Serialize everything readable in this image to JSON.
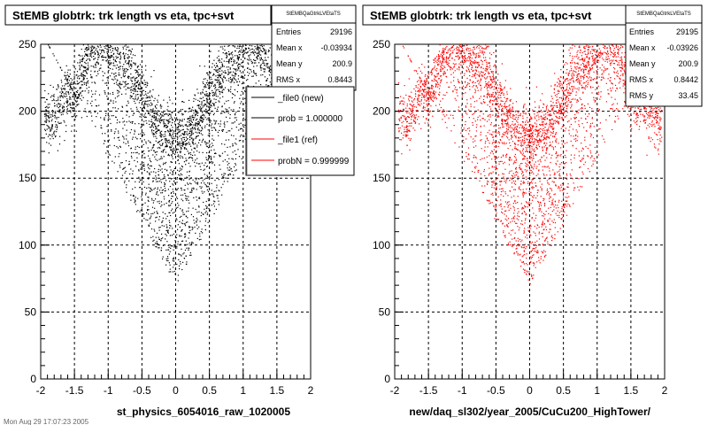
{
  "chart_data": [
    {
      "type": "scatter",
      "title": "StEMB globtrk: trk length vs eta, tpc+svt",
      "xlabel": "st_physics_6054016_raw_1020005",
      "ylabel": "",
      "xlim": [
        -2,
        2
      ],
      "ylim": [
        0,
        250
      ],
      "x_ticks": [
        "-2",
        "-1.5",
        "-1",
        "-0.5",
        "0",
        "0.5",
        "1",
        "1.5",
        "2"
      ],
      "y_ticks": [
        "0",
        "50",
        "100",
        "150",
        "200",
        "250"
      ],
      "grid": true,
      "marker_color": "#000000",
      "stats": {
        "name": "StEMBQaGtrkLVEtaTS",
        "rows": [
          {
            "label": "Entries",
            "value": "29196"
          },
          {
            "label": "Mean x",
            "value": "-0.03934"
          },
          {
            "label": "Mean y",
            "value": "200.9"
          },
          {
            "label": "RMS x",
            "value": "0.8443"
          }
        ]
      },
      "legend": {
        "placement": "right",
        "entries": [
          {
            "label": "_file0 (new)",
            "color": "#000000"
          },
          {
            "label": "prob = 1.000000",
            "color": "#000000"
          },
          {
            "label": "_file1 (ref)",
            "color": "#ff0000"
          },
          {
            "label": "probN = 0.999999",
            "color": "#ff0000"
          }
        ]
      },
      "distribution": {
        "entries": 29196,
        "rms_x": 0.8443,
        "mean_y": 200.9,
        "band": [
          [
            -1.8,
            190
          ],
          [
            -1.6,
            210
          ],
          [
            -1.5,
            205
          ],
          [
            -1.3,
            240
          ],
          [
            -1.1,
            250
          ],
          [
            -0.9,
            235
          ],
          [
            -0.7,
            230
          ],
          [
            -0.5,
            210
          ],
          [
            -0.3,
            190
          ],
          [
            -0.15,
            180
          ],
          [
            0.0,
            178
          ],
          [
            0.15,
            180
          ],
          [
            0.3,
            190
          ],
          [
            0.5,
            210
          ],
          [
            0.7,
            230
          ],
          [
            0.9,
            235
          ],
          [
            1.1,
            250
          ],
          [
            1.3,
            240
          ],
          [
            1.5,
            205
          ],
          [
            1.7,
            200
          ],
          [
            1.9,
            190
          ]
        ],
        "v_min_y": 70
      }
    },
    {
      "type": "scatter",
      "title": "StEMB globtrk: trk length vs eta, tpc+svt",
      "xlabel": "new/daq_sl302/year_2005/CuCu200_HighTower/",
      "ylabel": "",
      "xlim": [
        -2,
        2
      ],
      "ylim": [
        0,
        250
      ],
      "x_ticks": [
        "-2",
        "-1.5",
        "-1",
        "-0.5",
        "0",
        "0.5",
        "1",
        "1.5",
        "2"
      ],
      "y_ticks": [
        "0",
        "50",
        "100",
        "150",
        "200",
        "250"
      ],
      "grid": true,
      "marker_color": "#ff0000",
      "stats": {
        "name": "StEMBQaGtrkLVEtaTS",
        "rows": [
          {
            "label": "Entries",
            "value": "29195"
          },
          {
            "label": "Mean x",
            "value": "-0.03926"
          },
          {
            "label": "Mean y",
            "value": "200.9"
          },
          {
            "label": "RMS x",
            "value": "0.8442"
          },
          {
            "label": "RMS y",
            "value": "33.45"
          }
        ]
      },
      "distribution": {
        "entries": 29195,
        "rms_x": 0.8442,
        "mean_y": 200.9,
        "band": [
          [
            -1.8,
            190
          ],
          [
            -1.6,
            210
          ],
          [
            -1.5,
            205
          ],
          [
            -1.3,
            240
          ],
          [
            -1.1,
            250
          ],
          [
            -0.9,
            235
          ],
          [
            -0.7,
            230
          ],
          [
            -0.5,
            210
          ],
          [
            -0.3,
            190
          ],
          [
            -0.15,
            180
          ],
          [
            0.0,
            178
          ],
          [
            0.15,
            180
          ],
          [
            0.3,
            190
          ],
          [
            0.5,
            210
          ],
          [
            0.7,
            230
          ],
          [
            0.9,
            235
          ],
          [
            1.1,
            250
          ],
          [
            1.3,
            240
          ],
          [
            1.5,
            205
          ],
          [
            1.7,
            200
          ],
          [
            1.9,
            190
          ]
        ],
        "v_min_y": 70
      }
    }
  ],
  "footer": "Mon Aug 29 17:07:23 2005"
}
